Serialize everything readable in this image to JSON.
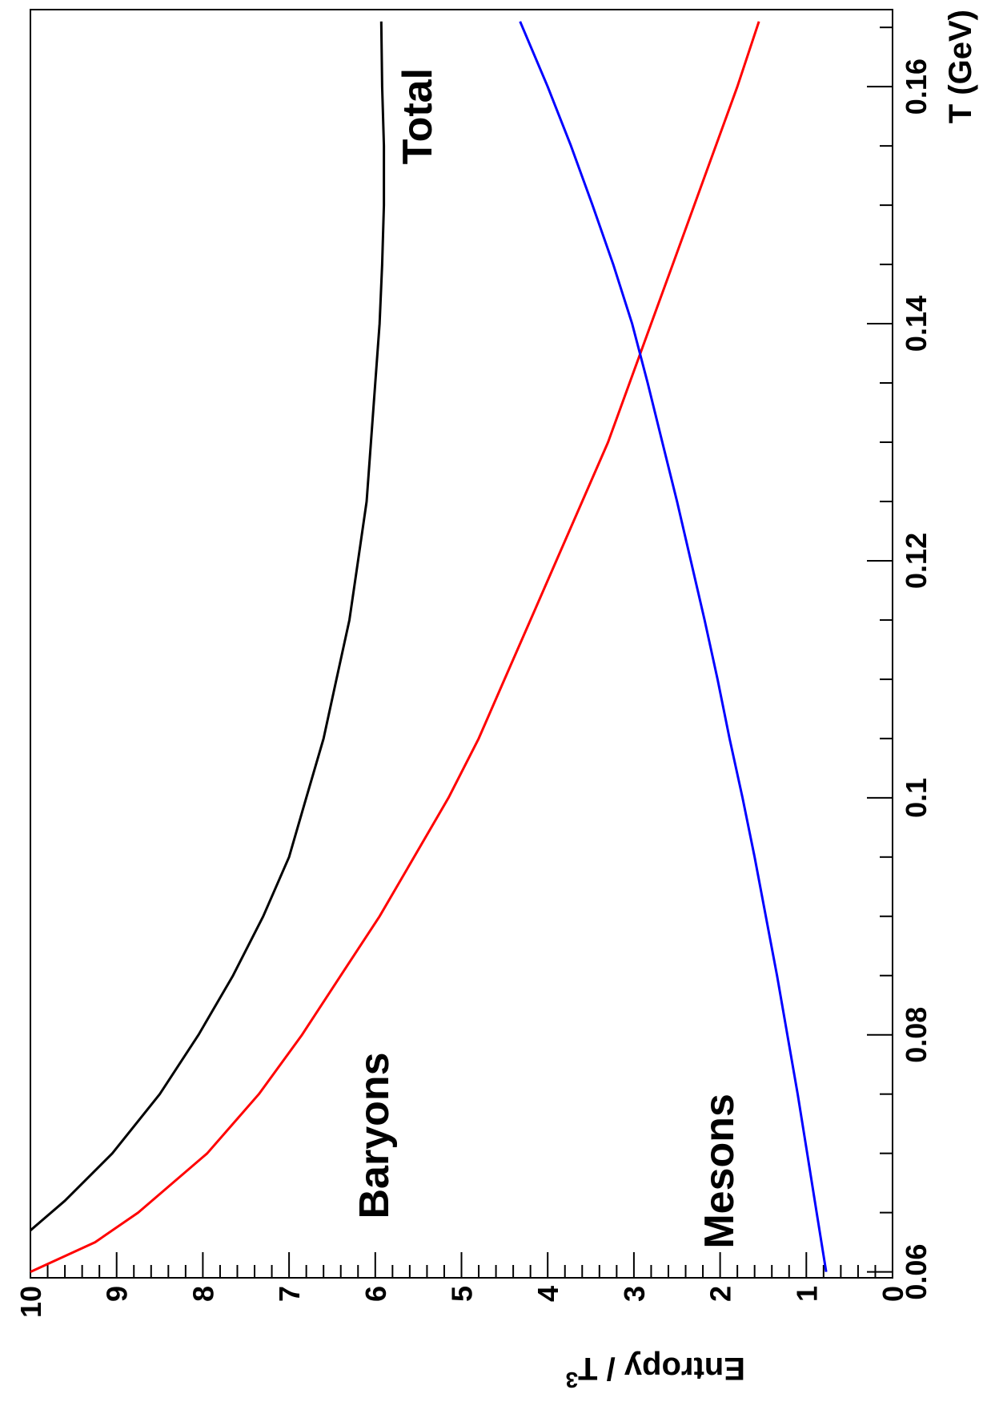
{
  "chart_data": {
    "type": "line",
    "title": "",
    "xlabel": "T (GeV)",
    "ylabel": "Entropy / T",
    "ylabel_superscript": "3",
    "orientation": "rotated-90-clockwise",
    "xlim": [
      0.0595,
      0.1665
    ],
    "ylim": [
      0,
      10
    ],
    "x_ticks": [
      0.06,
      0.08,
      0.1,
      0.12,
      0.14,
      0.16
    ],
    "x_tick_labels": [
      "0.06",
      "0.08",
      "0.1",
      "0.12",
      "0.14",
      "0.16"
    ],
    "y_ticks": [
      0,
      1,
      2,
      3,
      4,
      5,
      6,
      7,
      8,
      9,
      10
    ],
    "y_tick_labels": [
      "0",
      "1",
      "2",
      "3",
      "4",
      "5",
      "6",
      "7",
      "8",
      "9",
      "10"
    ],
    "grid": false,
    "legend": "none",
    "series": [
      {
        "name": "Total",
        "color": "#000000",
        "x": [
          0.0635,
          0.066,
          0.07,
          0.075,
          0.08,
          0.085,
          0.09,
          0.095,
          0.1,
          0.105,
          0.11,
          0.115,
          0.12,
          0.125,
          0.13,
          0.135,
          0.14,
          0.145,
          0.15,
          0.155,
          0.16,
          0.1655
        ],
        "y": [
          10.0,
          9.6,
          9.05,
          8.5,
          8.05,
          7.65,
          7.3,
          7.0,
          6.8,
          6.6,
          6.45,
          6.3,
          6.2,
          6.1,
          6.05,
          6.0,
          5.95,
          5.92,
          5.9,
          5.9,
          5.92,
          5.93
        ]
      },
      {
        "name": "Baryons",
        "color": "#ff0000",
        "x": [
          0.06,
          0.0625,
          0.065,
          0.07,
          0.075,
          0.08,
          0.085,
          0.09,
          0.095,
          0.1,
          0.105,
          0.11,
          0.115,
          0.12,
          0.125,
          0.13,
          0.135,
          0.14,
          0.145,
          0.15,
          0.155,
          0.16,
          0.1655
        ],
        "y": [
          10.0,
          9.25,
          8.75,
          7.95,
          7.35,
          6.85,
          6.4,
          5.95,
          5.55,
          5.15,
          4.8,
          4.5,
          4.2,
          3.9,
          3.6,
          3.3,
          3.05,
          2.8,
          2.55,
          2.3,
          2.05,
          1.8,
          1.55
        ]
      },
      {
        "name": "Mesons",
        "color": "#0000ff",
        "x": [
          0.06,
          0.065,
          0.07,
          0.075,
          0.08,
          0.085,
          0.09,
          0.095,
          0.1,
          0.105,
          0.11,
          0.115,
          0.12,
          0.125,
          0.13,
          0.135,
          0.14,
          0.145,
          0.15,
          0.155,
          0.16,
          0.1655
        ],
        "y": [
          0.77,
          0.88,
          0.99,
          1.1,
          1.22,
          1.34,
          1.47,
          1.6,
          1.74,
          1.89,
          2.03,
          2.18,
          2.34,
          2.5,
          2.67,
          2.84,
          3.02,
          3.24,
          3.48,
          3.73,
          4.0,
          4.32
        ]
      }
    ],
    "annotations": [
      "Total",
      "Baryons",
      "Mesons"
    ]
  }
}
